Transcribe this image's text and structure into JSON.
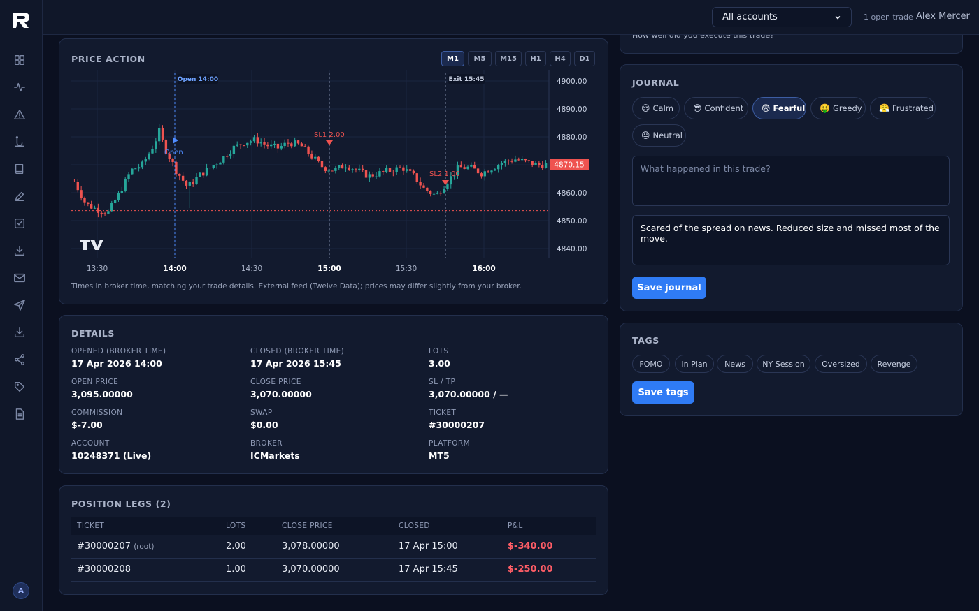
{
  "app": {
    "logo": "R"
  },
  "sidebar": {
    "icons": [
      "grid-icon",
      "pulse-icon",
      "alert-triangle-icon",
      "lotus-icon",
      "book-icon",
      "pencil-icon",
      "checkbox-icon",
      "download-icon",
      "mail-icon",
      "send-icon",
      "download-tray-icon",
      "share-icon",
      "tag-icon",
      "document-icon"
    ],
    "avatar_initial": "A"
  },
  "topbar": {
    "account_select": "All accounts",
    "open_trades": "1 open trade",
    "user_name": "Alex Mercer"
  },
  "price_action": {
    "title": "PRICE ACTION",
    "timeframes": [
      "M1",
      "M5",
      "M15",
      "H1",
      "H4",
      "D1"
    ],
    "active_timeframe": "M1",
    "note": "Times in broker time, matching your trade details. External feed (Twelve Data); prices may differ slightly from your broker.",
    "chart_data": {
      "type": "candlestick",
      "x_labels": [
        "13:30",
        "14:00",
        "14:30",
        "15:00",
        "15:30",
        "16:00"
      ],
      "x_labels_bold": [
        "14:00",
        "15:00",
        "16:00"
      ],
      "y_ticks": [
        "4900.00",
        "4890.00",
        "4880.00",
        "4870.00",
        "4860.00",
        "4850.00",
        "4840.00"
      ],
      "ylim": [
        4836.5,
        4904
      ],
      "current_price": "4870.15",
      "open_marker_label": "Open 14:00",
      "exit_marker_label": "Exit 15:45",
      "open_label": "Open",
      "sl1_label": "SL1 2.00",
      "sl2_label": "SL2 1.00",
      "reference_line_price": 4853.6,
      "up_color": "#26a69a",
      "down_color": "#ef5350"
    }
  },
  "details": {
    "title": "DETAILS",
    "fields": [
      {
        "label": "OPENED (BROKER TIME)",
        "value": "17 Apr 2026 14:00"
      },
      {
        "label": "CLOSED (BROKER TIME)",
        "value": "17 Apr 2026 15:45"
      },
      {
        "label": "LOTS",
        "value": "3.00"
      },
      {
        "label": "OPEN PRICE",
        "value": "3,095.00000"
      },
      {
        "label": "CLOSE PRICE",
        "value": "3,070.00000"
      },
      {
        "label": "SL / TP",
        "value": "3,070.00000 / —"
      },
      {
        "label": "COMMISSION",
        "value": "$-7.00"
      },
      {
        "label": "SWAP",
        "value": "$0.00"
      },
      {
        "label": "TICKET",
        "value": "#30000207"
      },
      {
        "label": "ACCOUNT",
        "value": "10248371 (Live)"
      },
      {
        "label": "BROKER",
        "value": "ICMarkets"
      },
      {
        "label": "PLATFORM",
        "value": "MT5"
      }
    ]
  },
  "legs": {
    "title": "POSITION LEGS (2)",
    "columns": [
      "TICKET",
      "LOTS",
      "CLOSE PRICE",
      "CLOSED",
      "P&L"
    ],
    "rows": [
      {
        "ticket": "#30000207",
        "tag": "(root)",
        "lots": "2.00",
        "close_price": "3,078.00000",
        "closed": "17 Apr 15:00",
        "pnl": "$-340.00"
      },
      {
        "ticket": "#30000208",
        "tag": "",
        "lots": "1.00",
        "close_price": "3,070.00000",
        "closed": "17 Apr 15:45",
        "pnl": "$-250.00"
      }
    ]
  },
  "execution": {
    "question": "How well did you execute this trade?"
  },
  "journal": {
    "title": "JOURNAL",
    "moods": [
      {
        "emoji": "😌",
        "label": "Calm"
      },
      {
        "emoji": "😎",
        "label": "Confident"
      },
      {
        "emoji": "😨",
        "label": "Fearful"
      },
      {
        "emoji": "🤑",
        "label": "Greedy"
      },
      {
        "emoji": "😤",
        "label": "Frustrated"
      },
      {
        "emoji": "😐",
        "label": "Neutral"
      }
    ],
    "active_mood": "Fearful",
    "what_happened_placeholder": "What happened in this trade?",
    "notes": "Scared of the spread on news. Reduced size and missed most of the move.",
    "save_label": "Save journal"
  },
  "tags": {
    "title": "TAGS",
    "items": [
      "FOMO",
      "In Plan",
      "News",
      "NY Session",
      "Oversized",
      "Revenge"
    ],
    "save_label": "Save tags"
  }
}
